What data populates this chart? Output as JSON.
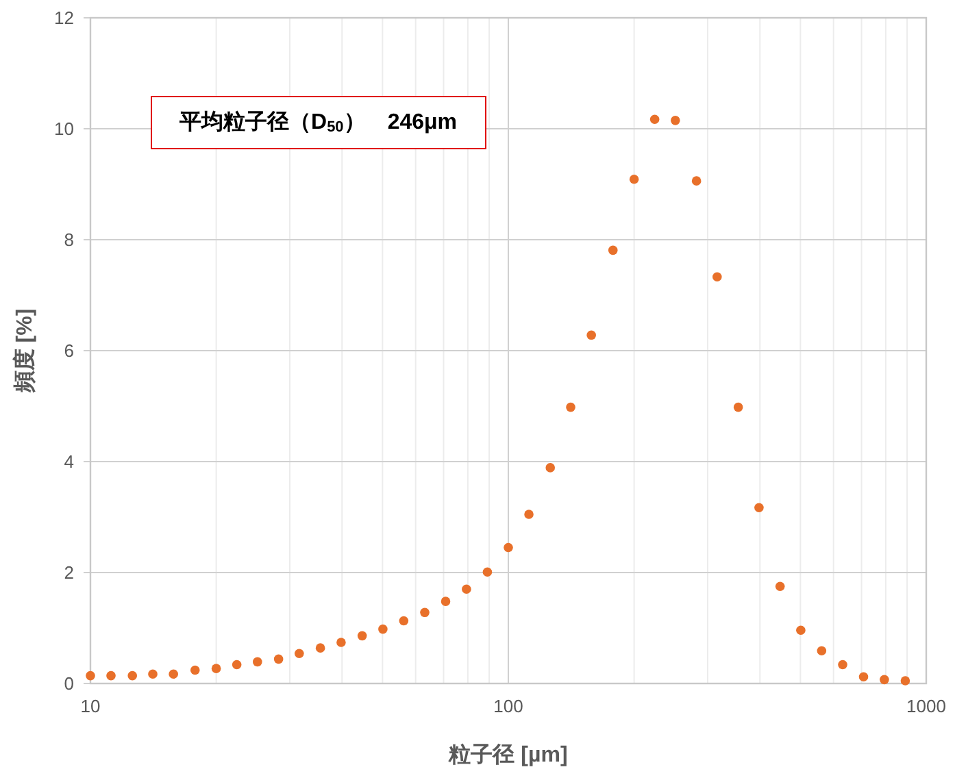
{
  "chart_data": {
    "type": "scatter",
    "xlabel": "粒子径 [µm]",
    "ylabel": "頻度 [%]",
    "annotations": [
      "平均粒子径（D$_{50}$）　246μm"
    ],
    "x": [
      10,
      11.2,
      12.6,
      14.1,
      15.8,
      17.8,
      20,
      22.4,
      25.1,
      28.2,
      31.6,
      35.5,
      39.8,
      44.7,
      50.1,
      56.2,
      63.1,
      70.8,
      79.4,
      89.1,
      100,
      112,
      126,
      141,
      158,
      178,
      200,
      224,
      251,
      282,
      316,
      355,
      398,
      447,
      501,
      562,
      631,
      708,
      794,
      891
    ],
    "values": [
      0.14,
      0.14,
      0.14,
      0.17,
      0.17,
      0.24,
      0.27,
      0.34,
      0.39,
      0.44,
      0.54,
      0.64,
      0.74,
      0.86,
      0.98,
      1.13,
      1.28,
      1.48,
      1.7,
      2.01,
      2.45,
      3.05,
      3.89,
      4.98,
      6.28,
      7.81,
      9.09,
      10.17,
      10.15,
      9.06,
      7.33,
      4.98,
      3.17,
      1.75,
      0.96,
      0.59,
      0.34,
      0.12,
      0.07,
      0.05
    ],
    "color": "#e8702a",
    "marker": "circle",
    "log": "x",
    "grid": true,
    "xlim": [
      10,
      1000
    ],
    "xticks": [
      10,
      100,
      1000
    ],
    "ylim": [
      0,
      12
    ],
    "yticks": [
      0,
      2,
      4,
      6,
      8,
      10,
      12
    ]
  }
}
